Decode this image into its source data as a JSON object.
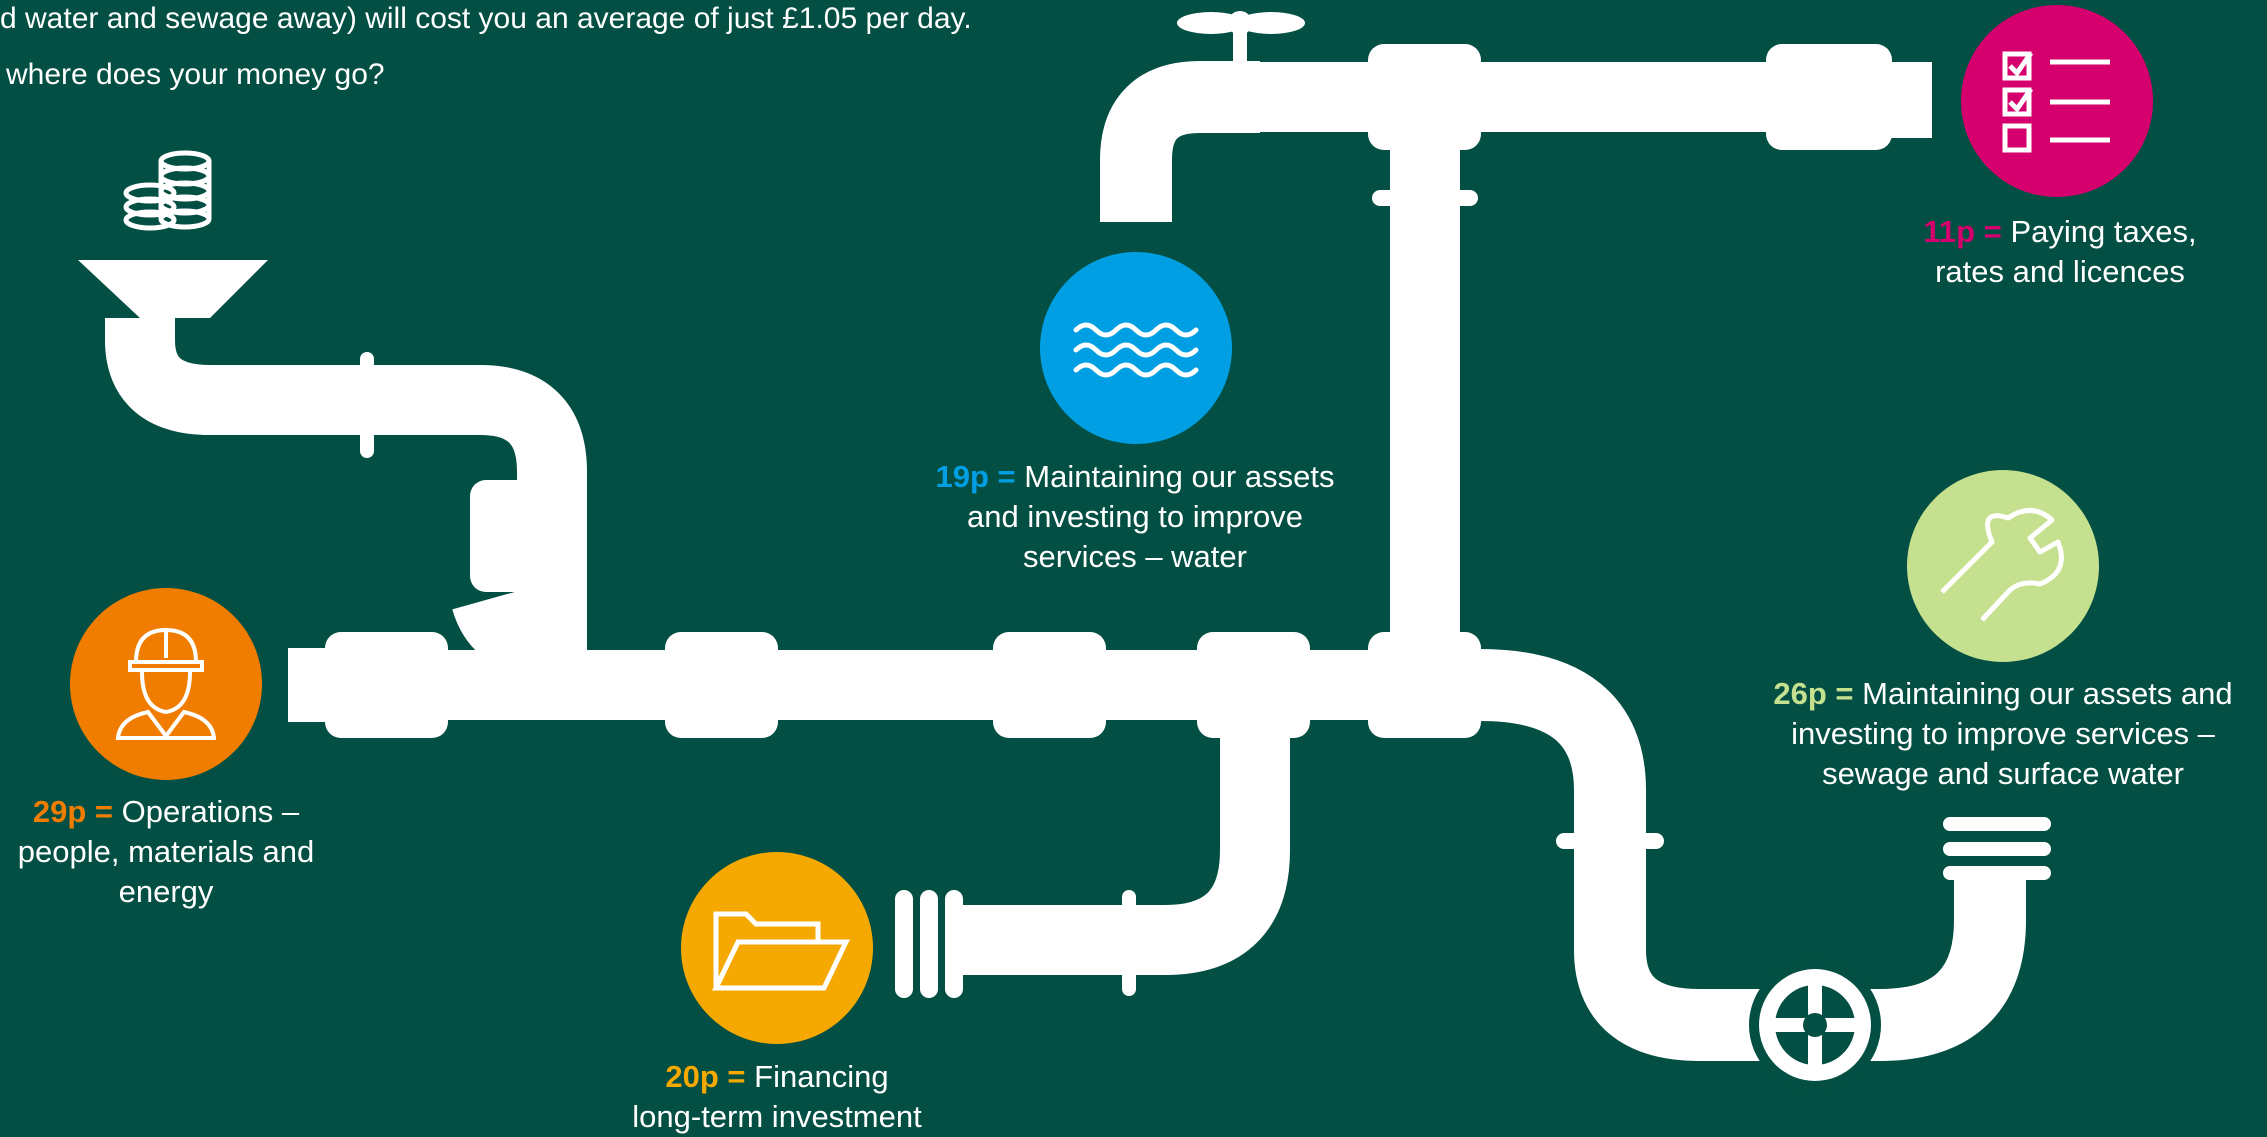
{
  "intro": {
    "line1": "d water and sewage away) will cost you an average of just £1.05 per day.",
    "line2": "where does your money go?"
  },
  "colors": {
    "background": "#034f43",
    "pipe": "#ffffff",
    "operations": "#f07d00",
    "financing": "#f5a800",
    "water": "#009fe3",
    "taxes": "#d5006d",
    "sewage": "#c5e08f"
  },
  "items": [
    {
      "key": "operations",
      "amount": "29p =",
      "text_lines": [
        "Operations –",
        "people, materials and",
        "energy"
      ],
      "icon": "worker-hardhat-icon",
      "color": "#f07d00"
    },
    {
      "key": "financing",
      "amount": "20p =",
      "text_lines": [
        "Financing",
        "long-term investment"
      ],
      "icon": "folder-icon",
      "color": "#f5a800"
    },
    {
      "key": "water",
      "amount": "19p =",
      "text_lines": [
        "Maintaining our assets",
        "and investing to improve",
        "services – water"
      ],
      "icon": "water-waves-icon",
      "color": "#009fe3"
    },
    {
      "key": "taxes",
      "amount": "11p =",
      "text_lines": [
        "Paying taxes,",
        "rates and licences"
      ],
      "icon": "checklist-icon",
      "color": "#d5006d"
    },
    {
      "key": "sewage",
      "amount": "26p =",
      "text_lines": [
        "Maintaining our assets and",
        "investing to improve services –",
        "sewage and surface water"
      ],
      "icon": "wrench-icon",
      "color": "#c5e08f"
    }
  ]
}
